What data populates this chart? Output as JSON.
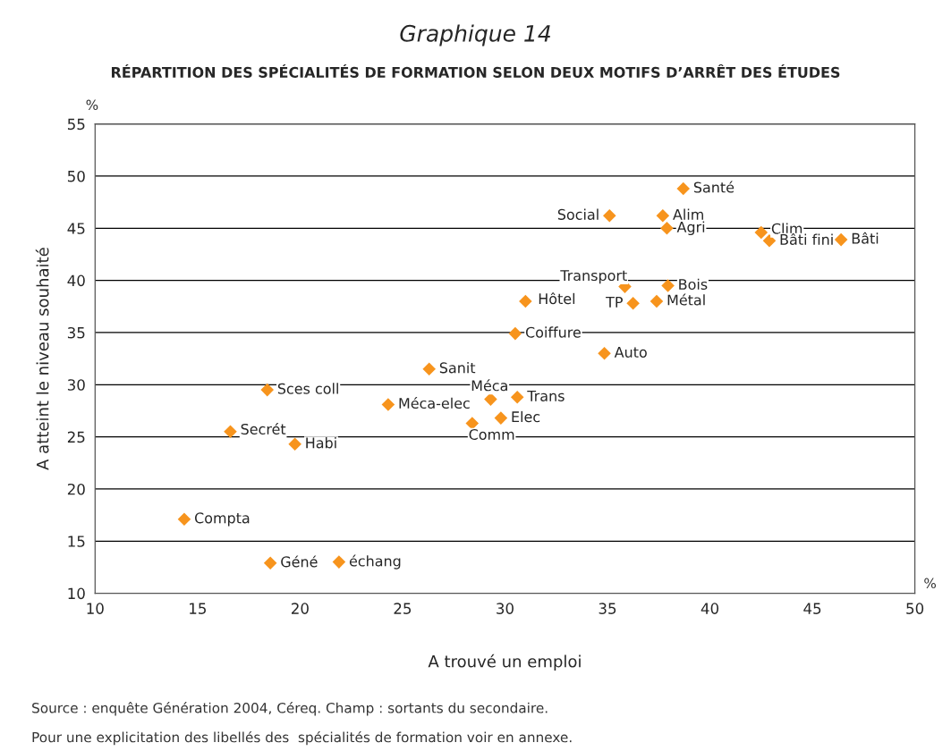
{
  "chart_data": {
    "type": "scatter",
    "title": "Graphique 14",
    "subtitle": "RÉPARTITION DES SPÉCIALITÉS DE FORMATION SELON DEUX MOTIFS D’ARRÊT DES ÉTUDES",
    "xlabel": "A trouvé un emploi",
    "ylabel": "A atteint le niveau souhaité",
    "xlim": [
      10,
      50
    ],
    "ylim": [
      10,
      55
    ],
    "xticks": [
      10,
      15,
      20,
      25,
      30,
      35,
      40,
      45,
      50
    ],
    "yticks": [
      10,
      15,
      20,
      25,
      30,
      35,
      40,
      45,
      50,
      55
    ],
    "grid": "y",
    "marker": "diamond",
    "series": [
      {
        "color": "#f7941d",
        "x": [
          38.7,
          35.1,
          37.7,
          37.9,
          42.5,
          42.9,
          46.4,
          35.85,
          37.95,
          36.25,
          37.4,
          31.0,
          30.5,
          34.85,
          26.3,
          18.4,
          29.3,
          30.6,
          24.3,
          29.8,
          28.4,
          16.6,
          19.75,
          14.35,
          18.55,
          21.9
        ],
        "values": [
          48.8,
          46.2,
          46.2,
          45.0,
          44.6,
          43.8,
          43.9,
          39.4,
          39.5,
          37.8,
          38.0,
          38.0,
          34.9,
          33.0,
          31.5,
          29.5,
          28.6,
          28.8,
          28.1,
          26.8,
          26.3,
          25.5,
          24.3,
          17.1,
          12.9,
          13.0
        ]
      }
    ],
    "annotations": [
      {
        "text": "Santé",
        "x": 38.7,
        "y": 48.8
      },
      {
        "text": "Social",
        "x": 35.1,
        "y": 46.2
      },
      {
        "text": "Alim",
        "x": 37.7,
        "y": 46.2
      },
      {
        "text": "Agri",
        "x": 37.9,
        "y": 45.0
      },
      {
        "text": "Clim",
        "x": 42.5,
        "y": 44.6
      },
      {
        "text": "Bâti fini",
        "x": 42.9,
        "y": 43.8
      },
      {
        "text": "Bâti",
        "x": 46.4,
        "y": 43.9
      },
      {
        "text": "Transport",
        "x": 35.85,
        "y": 39.4
      },
      {
        "text": "Bois",
        "x": 37.95,
        "y": 39.5
      },
      {
        "text": "TP",
        "x": 36.25,
        "y": 37.8
      },
      {
        "text": "Métal",
        "x": 37.4,
        "y": 38.0
      },
      {
        "text": "Hôtel",
        "x": 31.0,
        "y": 38.0
      },
      {
        "text": "Coiffure",
        "x": 30.5,
        "y": 34.9
      },
      {
        "text": "Auto",
        "x": 34.85,
        "y": 33.0
      },
      {
        "text": "Sanit",
        "x": 26.3,
        "y": 31.5
      },
      {
        "text": "Sces coll",
        "x": 18.4,
        "y": 29.5
      },
      {
        "text": "Méca",
        "x": 29.3,
        "y": 28.6
      },
      {
        "text": "Trans",
        "x": 30.6,
        "y": 28.8
      },
      {
        "text": "Méca-elec",
        "x": 24.3,
        "y": 28.1
      },
      {
        "text": "Elec",
        "x": 29.8,
        "y": 26.8
      },
      {
        "text": "Comm",
        "x": 28.4,
        "y": 26.3
      },
      {
        "text": "Secrét",
        "x": 16.6,
        "y": 25.5
      },
      {
        "text": "Habi",
        "x": 19.75,
        "y": 24.3
      },
      {
        "text": "Compta",
        "x": 14.35,
        "y": 17.1
      },
      {
        "text": "Géné",
        "x": 18.55,
        "y": 12.9
      },
      {
        "text": "échang",
        "x": 21.9,
        "y": 13.0
      },
      "%",
      "%",
      "Source : enquête Génération 2004, Céreq. Champ : sortants du secondaire.",
      "Pour une explicitation des libellés des  spécialités de formation voir en annexe."
    ]
  }
}
